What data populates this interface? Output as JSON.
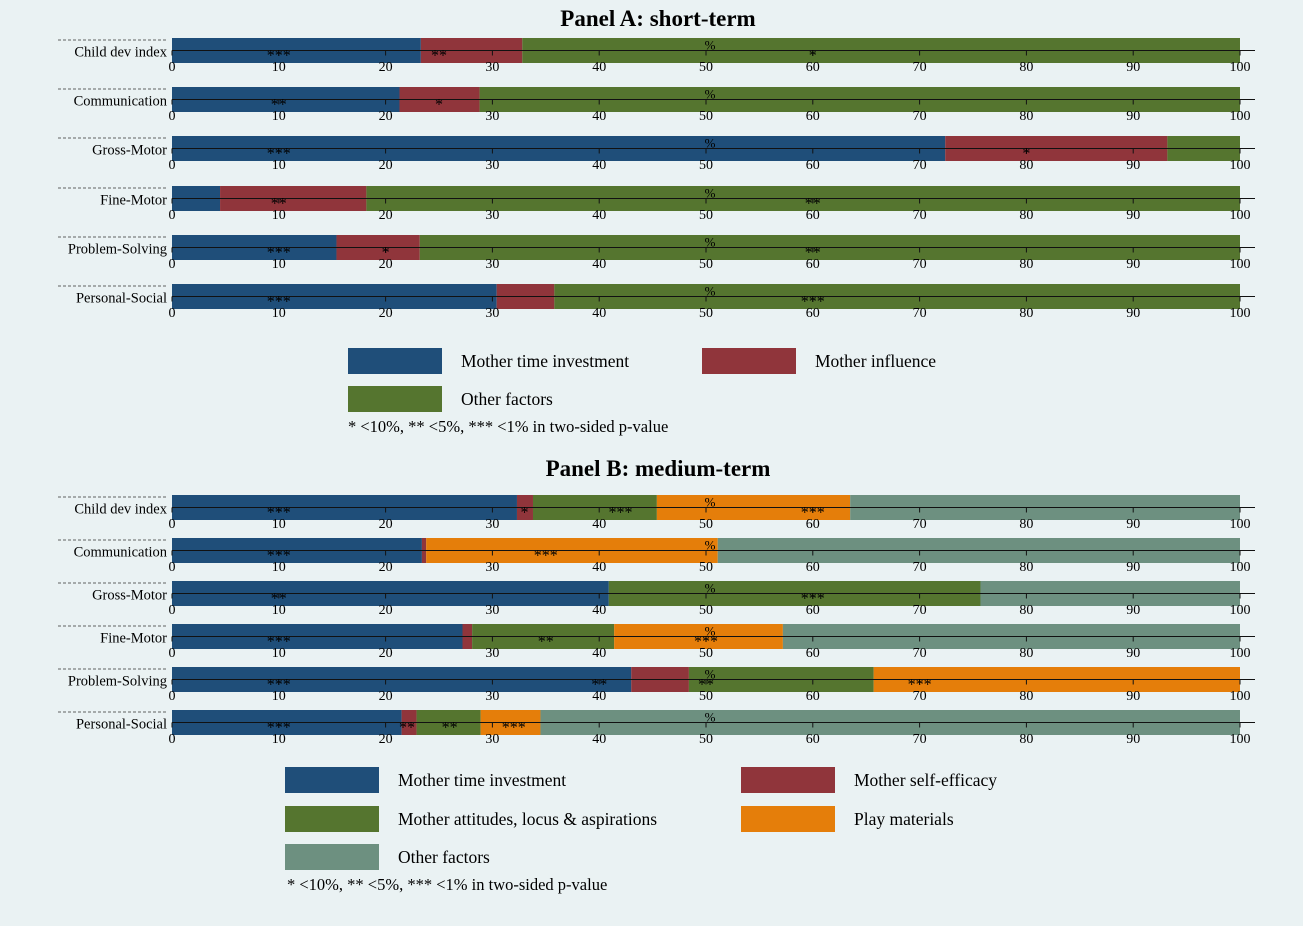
{
  "chart_data": [
    {
      "type": "bar",
      "stacked": true,
      "orientation": "horizontal",
      "title": "Panel A: short-term",
      "axis_unit_label": "%",
      "xlim": [
        0,
        100
      ],
      "xticks": [
        0,
        10,
        20,
        30,
        40,
        50,
        60,
        70,
        80,
        90,
        100
      ],
      "categories": [
        "Child dev index",
        "Communication",
        "Gross-Motor",
        "Fine-Motor",
        "Problem-Solving",
        "Personal-Social"
      ],
      "series": [
        {
          "name": "Mother time investment",
          "color": "#1f4e79",
          "values": [
            23.3,
            21.3,
            72.4,
            4.5,
            15.4,
            30.4
          ]
        },
        {
          "name": "Mother influence",
          "color": "#90353b",
          "values": [
            9.5,
            7.5,
            20.8,
            13.7,
            7.8,
            5.4
          ]
        },
        {
          "name": "Other factors",
          "color": "#55752f",
          "values": [
            67.2,
            71.2,
            6.8,
            81.8,
            76.8,
            64.2
          ]
        }
      ],
      "significance": [
        [
          {
            "x": 10,
            "text": "***"
          },
          {
            "x": 25,
            "text": "**"
          },
          {
            "x": 60,
            "text": "*"
          }
        ],
        [
          {
            "x": 10,
            "text": "**"
          },
          {
            "x": 25,
            "text": "*"
          }
        ],
        [
          {
            "x": 10,
            "text": "***"
          },
          {
            "x": 80,
            "text": "*"
          }
        ],
        [
          {
            "x": 10,
            "text": "**"
          },
          {
            "x": 60,
            "text": "**"
          }
        ],
        [
          {
            "x": 10,
            "text": "***"
          },
          {
            "x": 20,
            "text": "*"
          },
          {
            "x": 60,
            "text": "**"
          }
        ],
        [
          {
            "x": 10,
            "text": "***"
          },
          {
            "x": 60,
            "text": "***"
          }
        ]
      ],
      "legend_columns": 2,
      "legend_placement": "bottom",
      "note": "* <10%, ** <5%, *** <1% in two-sided p-value"
    },
    {
      "type": "bar",
      "stacked": true,
      "orientation": "horizontal",
      "title": "Panel B: medium-term",
      "axis_unit_label": "%",
      "xlim": [
        0,
        100
      ],
      "xticks": [
        0,
        10,
        20,
        30,
        40,
        50,
        60,
        70,
        80,
        90,
        100
      ],
      "categories": [
        "Child dev index",
        "Communication",
        "Gross-Motor",
        "Fine-Motor",
        "Problem-Solving",
        "Personal-Social"
      ],
      "series": [
        {
          "name": "Mother time investment",
          "color": "#1f4e79",
          "values": [
            32.3,
            23.4,
            40.9,
            27.2,
            43.0,
            21.5
          ]
        },
        {
          "name": "Mother self-efficacy",
          "color": "#90353b",
          "values": [
            1.5,
            0.4,
            0.0,
            0.9,
            5.4,
            1.4
          ]
        },
        {
          "name": "Mother attitudes, locus & aspirations",
          "color": "#55752f",
          "values": [
            11.6,
            0.0,
            34.8,
            13.3,
            17.3,
            6.0
          ]
        },
        {
          "name": "Play materials",
          "color": "#e57e0a",
          "values": [
            18.1,
            27.3,
            0.0,
            15.8,
            34.3,
            5.6
          ]
        },
        {
          "name": "Other factors",
          "color": "#6d9080",
          "values": [
            36.5,
            48.9,
            24.3,
            42.8,
            0.0,
            65.5
          ]
        }
      ],
      "significance": [
        [
          {
            "x": 10,
            "text": "***"
          },
          {
            "x": 33,
            "text": "*"
          },
          {
            "x": 42,
            "text": "***"
          },
          {
            "x": 60,
            "text": "***"
          }
        ],
        [
          {
            "x": 10,
            "text": "***"
          },
          {
            "x": 35,
            "text": "***"
          }
        ],
        [
          {
            "x": 10,
            "text": "**"
          },
          {
            "x": 60,
            "text": "***"
          }
        ],
        [
          {
            "x": 10,
            "text": "***"
          },
          {
            "x": 35,
            "text": "**"
          },
          {
            "x": 50,
            "text": "***"
          }
        ],
        [
          {
            "x": 10,
            "text": "***"
          },
          {
            "x": 40,
            "text": "**"
          },
          {
            "x": 50,
            "text": "**"
          },
          {
            "x": 70,
            "text": "***"
          }
        ],
        [
          {
            "x": 10,
            "text": "***"
          },
          {
            "x": 22,
            "text": "**"
          },
          {
            "x": 26,
            "text": "**"
          },
          {
            "x": 32,
            "text": "***"
          }
        ]
      ],
      "legend_columns": 2,
      "legend_placement": "bottom",
      "note": "* <10%, ** <5%, *** <1% in two-sided p-value"
    }
  ]
}
